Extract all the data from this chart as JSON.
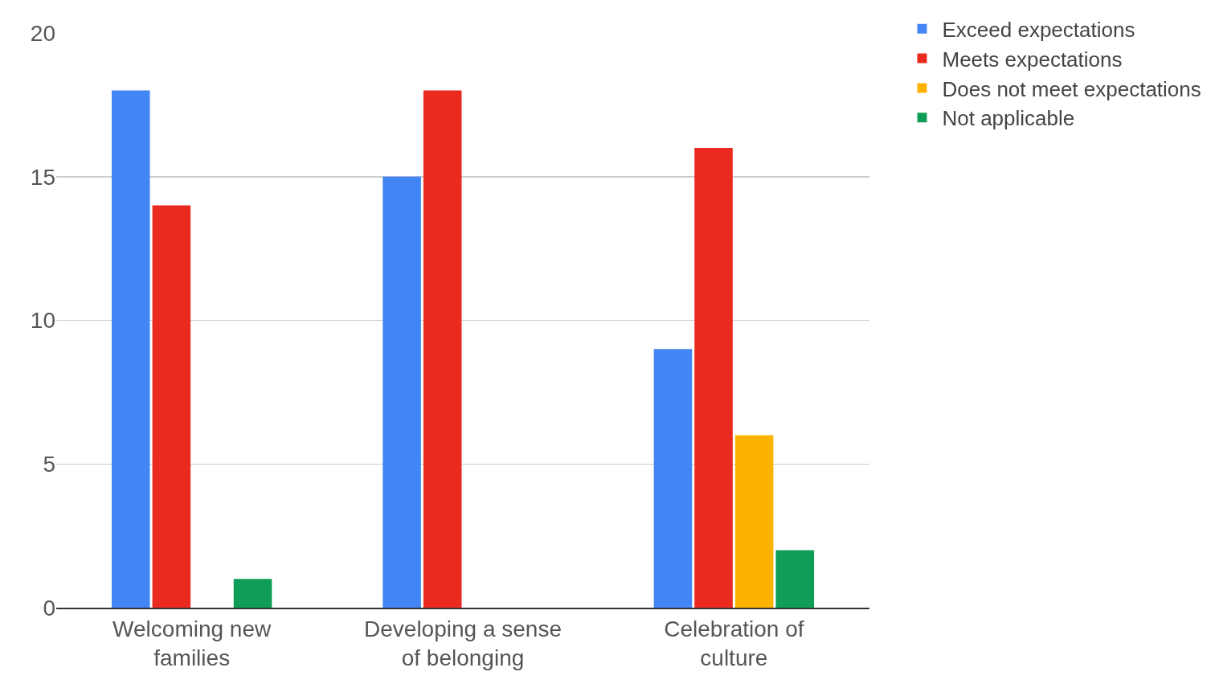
{
  "chart_data": {
    "type": "bar",
    "categories": [
      "Welcoming new families",
      "Developing a sense of belonging",
      "Celebration of culture"
    ],
    "series": [
      {
        "name": "Exceed expectations",
        "color": "#4285f4",
        "values": [
          18,
          15,
          9
        ]
      },
      {
        "name": "Meets expectations",
        "color": "#ea2a1f",
        "values": [
          14,
          18,
          16
        ]
      },
      {
        "name": "Does not meet expectations",
        "color": "#fbb300",
        "values": [
          0,
          0,
          6
        ]
      },
      {
        "name": "Not applicable",
        "color": "#0f9d58",
        "values": [
          1,
          0,
          2
        ]
      }
    ],
    "ylim": [
      0,
      20
    ],
    "yticks": [
      0,
      5,
      10,
      15,
      20
    ],
    "grid": "y",
    "legend": "top right"
  }
}
